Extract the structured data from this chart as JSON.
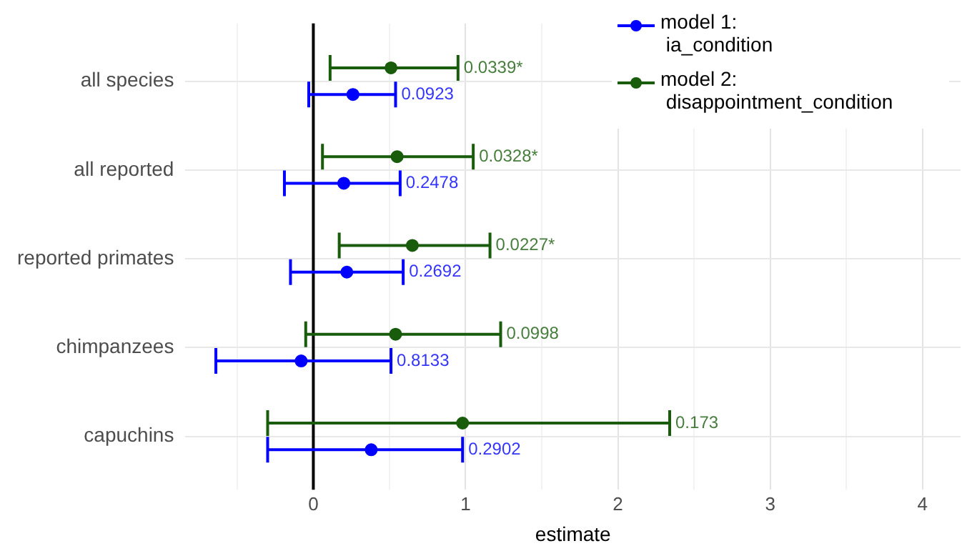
{
  "chart_data": {
    "type": "scatter",
    "orientation": "horizontal",
    "xlabel": "estimate",
    "categories": [
      "all species",
      "all reported",
      "reported primates",
      "chimpanzees",
      "capuchins"
    ],
    "series": [
      {
        "name": "model 1: ia_condition",
        "color": "#0000ff",
        "values": [
          0.26,
          0.2,
          0.22,
          -0.08,
          0.38
        ],
        "errors": [
          [
            -0.03,
            0.54
          ],
          [
            -0.19,
            0.57
          ],
          [
            -0.15,
            0.59
          ],
          [
            -0.64,
            0.51
          ],
          [
            -0.3,
            0.98
          ]
        ]
      },
      {
        "name": "model 2: disappointment_condition",
        "color": "#195c0c",
        "values": [
          0.51,
          0.55,
          0.65,
          0.54,
          0.98
        ],
        "errors": [
          [
            0.11,
            0.95
          ],
          [
            0.06,
            1.05
          ],
          [
            0.17,
            1.16
          ],
          [
            -0.05,
            1.23
          ],
          [
            -0.3,
            2.34
          ]
        ]
      }
    ],
    "annotations": [
      {
        "text": "0.0923",
        "x": 0.54,
        "y": "all species"
      },
      {
        "text": "0.2478",
        "x": 0.57,
        "y": "all reported"
      },
      {
        "text": "0.2692",
        "x": 0.59,
        "y": "reported primates"
      },
      {
        "text": "0.8133",
        "x": 0.51,
        "y": "chimpanzees"
      },
      {
        "text": "0.2902",
        "x": 0.98,
        "y": "capuchins"
      },
      {
        "text": "0.0339*",
        "x": 0.95,
        "y": "all species"
      },
      {
        "text": "0.0328*",
        "x": 1.05,
        "y": "all reported"
      },
      {
        "text": "0.0227*",
        "x": 1.16,
        "y": "reported primates"
      },
      {
        "text": "0.0998",
        "x": 1.23,
        "y": "chimpanzees"
      },
      {
        "text": "0.173",
        "x": 2.34,
        "y": "capuchins"
      }
    ],
    "xlim": [
      -0.84,
      4.25
    ],
    "xticks": [
      {
        "value": -0.5,
        "label": null
      },
      0,
      {
        "value": 0.5,
        "label": null
      },
      1,
      {
        "value": 1.5,
        "label": null
      },
      2,
      {
        "value": 2.5,
        "label": null
      },
      3,
      {
        "value": 3.5,
        "label": null
      },
      4
    ],
    "ref_lines": [
      {
        "axis": "x",
        "value": 0,
        "color": "#000000"
      }
    ],
    "grid": true,
    "legend": "top right",
    "marker": "circle"
  }
}
